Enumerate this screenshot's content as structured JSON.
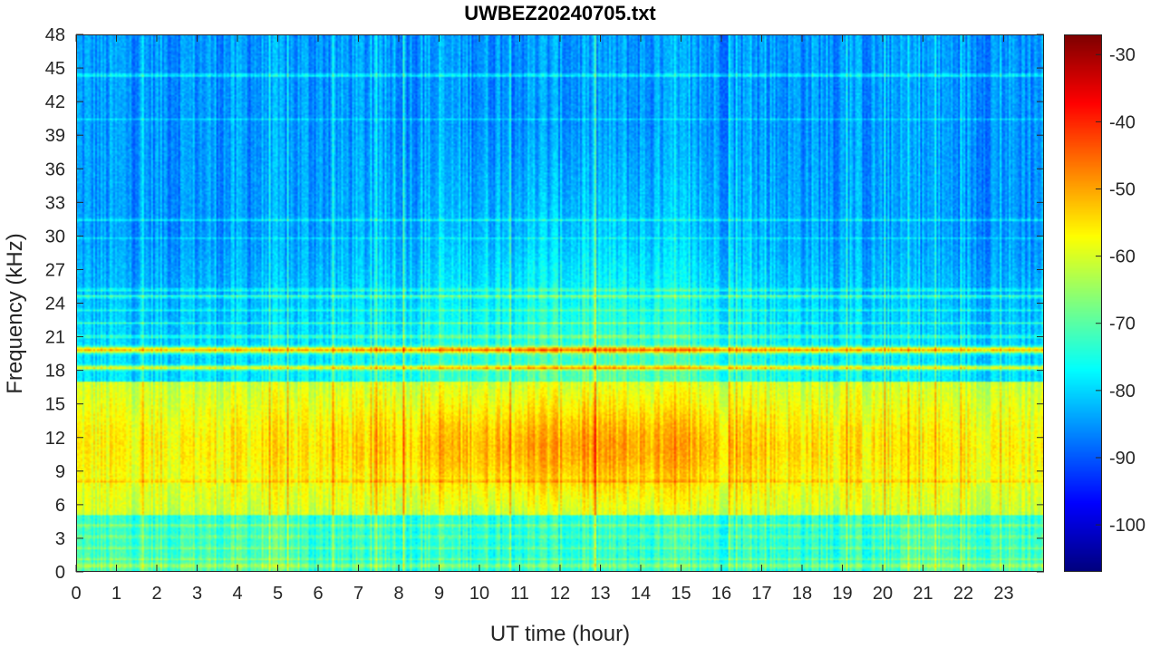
{
  "chart_data": {
    "type": "heatmap",
    "title": "UWBEZ20240705.txt",
    "xlabel": "UT time (hour)",
    "ylabel": "Frequency (kHz)",
    "xlim": [
      0,
      24
    ],
    "ylim": [
      0,
      48
    ],
    "x_ticks": [
      "0",
      "1",
      "2",
      "3",
      "4",
      "5",
      "6",
      "7",
      "8",
      "9",
      "10",
      "11",
      "12",
      "13",
      "14",
      "15",
      "16",
      "17",
      "18",
      "19",
      "20",
      "21",
      "22",
      "23"
    ],
    "y_ticks": [
      "0",
      "3",
      "6",
      "9",
      "12",
      "15",
      "18",
      "21",
      "24",
      "27",
      "30",
      "33",
      "36",
      "39",
      "42",
      "45",
      "48"
    ],
    "colorbar": {
      "colormap": "jet",
      "clim": [
        -107,
        -27
      ],
      "ticks": [
        "-30",
        "-40",
        "-50",
        "-60",
        "-70",
        "-80",
        "-90",
        "-100"
      ]
    },
    "features": {
      "strong_line_khz": 19.8,
      "secondary_line_khz": 18.2,
      "background_level_high_freq_db": -85,
      "band_6_16khz_peak_db": -50,
      "band_6_16khz_peak_time_hour": 12.5
    },
    "grid": false
  },
  "colors": {
    "axis": "#262626",
    "background": "#ffffff"
  }
}
